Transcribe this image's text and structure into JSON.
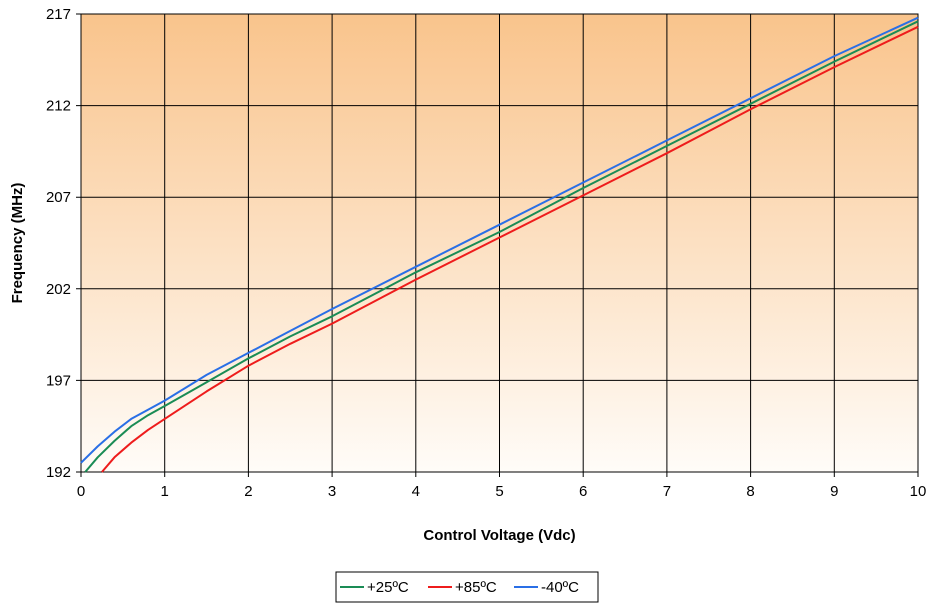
{
  "chart_data": {
    "type": "line",
    "title": "",
    "xlabel": "Control Voltage (Vdc)",
    "ylabel": "Frequency (MHz)",
    "xlim": [
      0,
      10
    ],
    "ylim": [
      192,
      217
    ],
    "x_ticks": [
      "0",
      "1",
      "2",
      "3",
      "4",
      "5",
      "6",
      "7",
      "8",
      "9",
      "10"
    ],
    "y_ticks": [
      "192",
      "197",
      "202",
      "207",
      "212",
      "217"
    ],
    "grid": true,
    "legend_position": "bottom",
    "background": "vertical gradient, orange at top to white at bottom",
    "colors": {
      "bg_top": "#f9c48c",
      "bg_bottom": "#fffcf8",
      "grid": "#000000",
      "+25ºC": "#1a8c55",
      "+85ºC": "#ee1c1c",
      "-40ºC": "#2a6fe6"
    },
    "series": [
      {
        "name": "+25ºC",
        "x": [
          0.05,
          0.2,
          0.4,
          0.6,
          0.8,
          1.0,
          1.5,
          2.0,
          2.5,
          3.0,
          4.0,
          5.0,
          6.0,
          7.0,
          8.0,
          9.0,
          10.0
        ],
        "y": [
          192.0,
          192.8,
          193.7,
          194.5,
          195.1,
          195.6,
          196.9,
          198.2,
          199.4,
          200.5,
          202.9,
          205.1,
          207.5,
          209.8,
          212.1,
          214.4,
          216.6
        ]
      },
      {
        "name": "+85ºC",
        "x": [
          0.25,
          0.4,
          0.6,
          0.8,
          1.0,
          1.5,
          2.0,
          2.5,
          3.0,
          4.0,
          5.0,
          6.0,
          7.0,
          8.0,
          9.0,
          10.0
        ],
        "y": [
          192.0,
          192.8,
          193.6,
          194.3,
          194.9,
          196.4,
          197.8,
          199.0,
          200.1,
          202.5,
          204.8,
          207.1,
          209.4,
          211.8,
          214.1,
          216.3
        ]
      },
      {
        "name": "-40ºC",
        "x": [
          0.0,
          0.2,
          0.4,
          0.6,
          0.8,
          1.0,
          1.5,
          2.0,
          2.5,
          3.0,
          4.0,
          5.0,
          6.0,
          7.0,
          8.0,
          9.0,
          10.0
        ],
        "y": [
          192.5,
          193.4,
          194.2,
          194.9,
          195.4,
          195.9,
          197.3,
          198.5,
          199.7,
          200.9,
          203.2,
          205.5,
          207.8,
          210.1,
          212.4,
          214.7,
          216.8
        ]
      }
    ]
  }
}
